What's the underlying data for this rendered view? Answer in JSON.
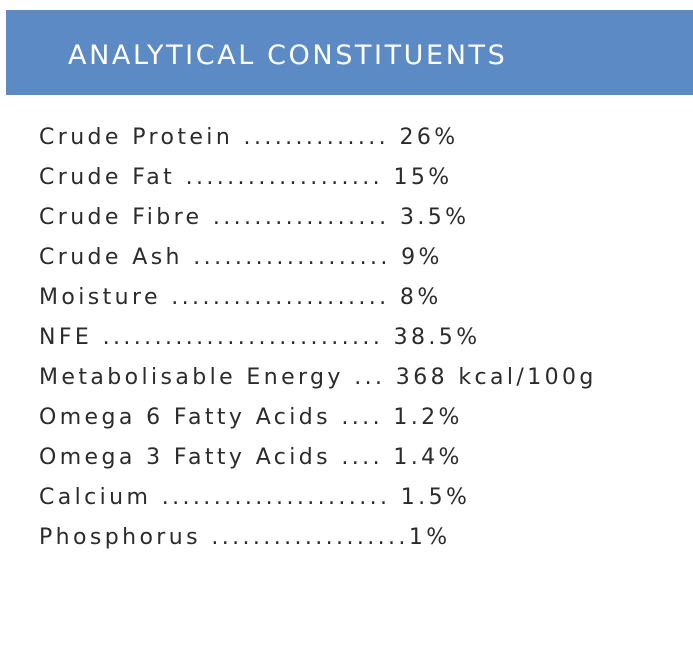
{
  "header": {
    "title": "ANALYTICAL CONSTITUENTS",
    "background_color": "#5b8ac4"
  },
  "constituents": [
    "Crude Protein .............. 26%",
    "Crude Fat ................... 15%",
    "Crude Fibre ................. 3.5%",
    "Crude Ash ................... 9%",
    "Moisture ..................... 8%",
    "NFE ........................... 38.5%",
    "Metabolisable Energy ... 368 kcal/100g",
    "Omega 6 Fatty Acids .... 1.2%",
    "Omega 3 Fatty Acids .... 1.4%",
    "Calcium ...................... 1.5%",
    "Phosphorus ...................1%"
  ]
}
